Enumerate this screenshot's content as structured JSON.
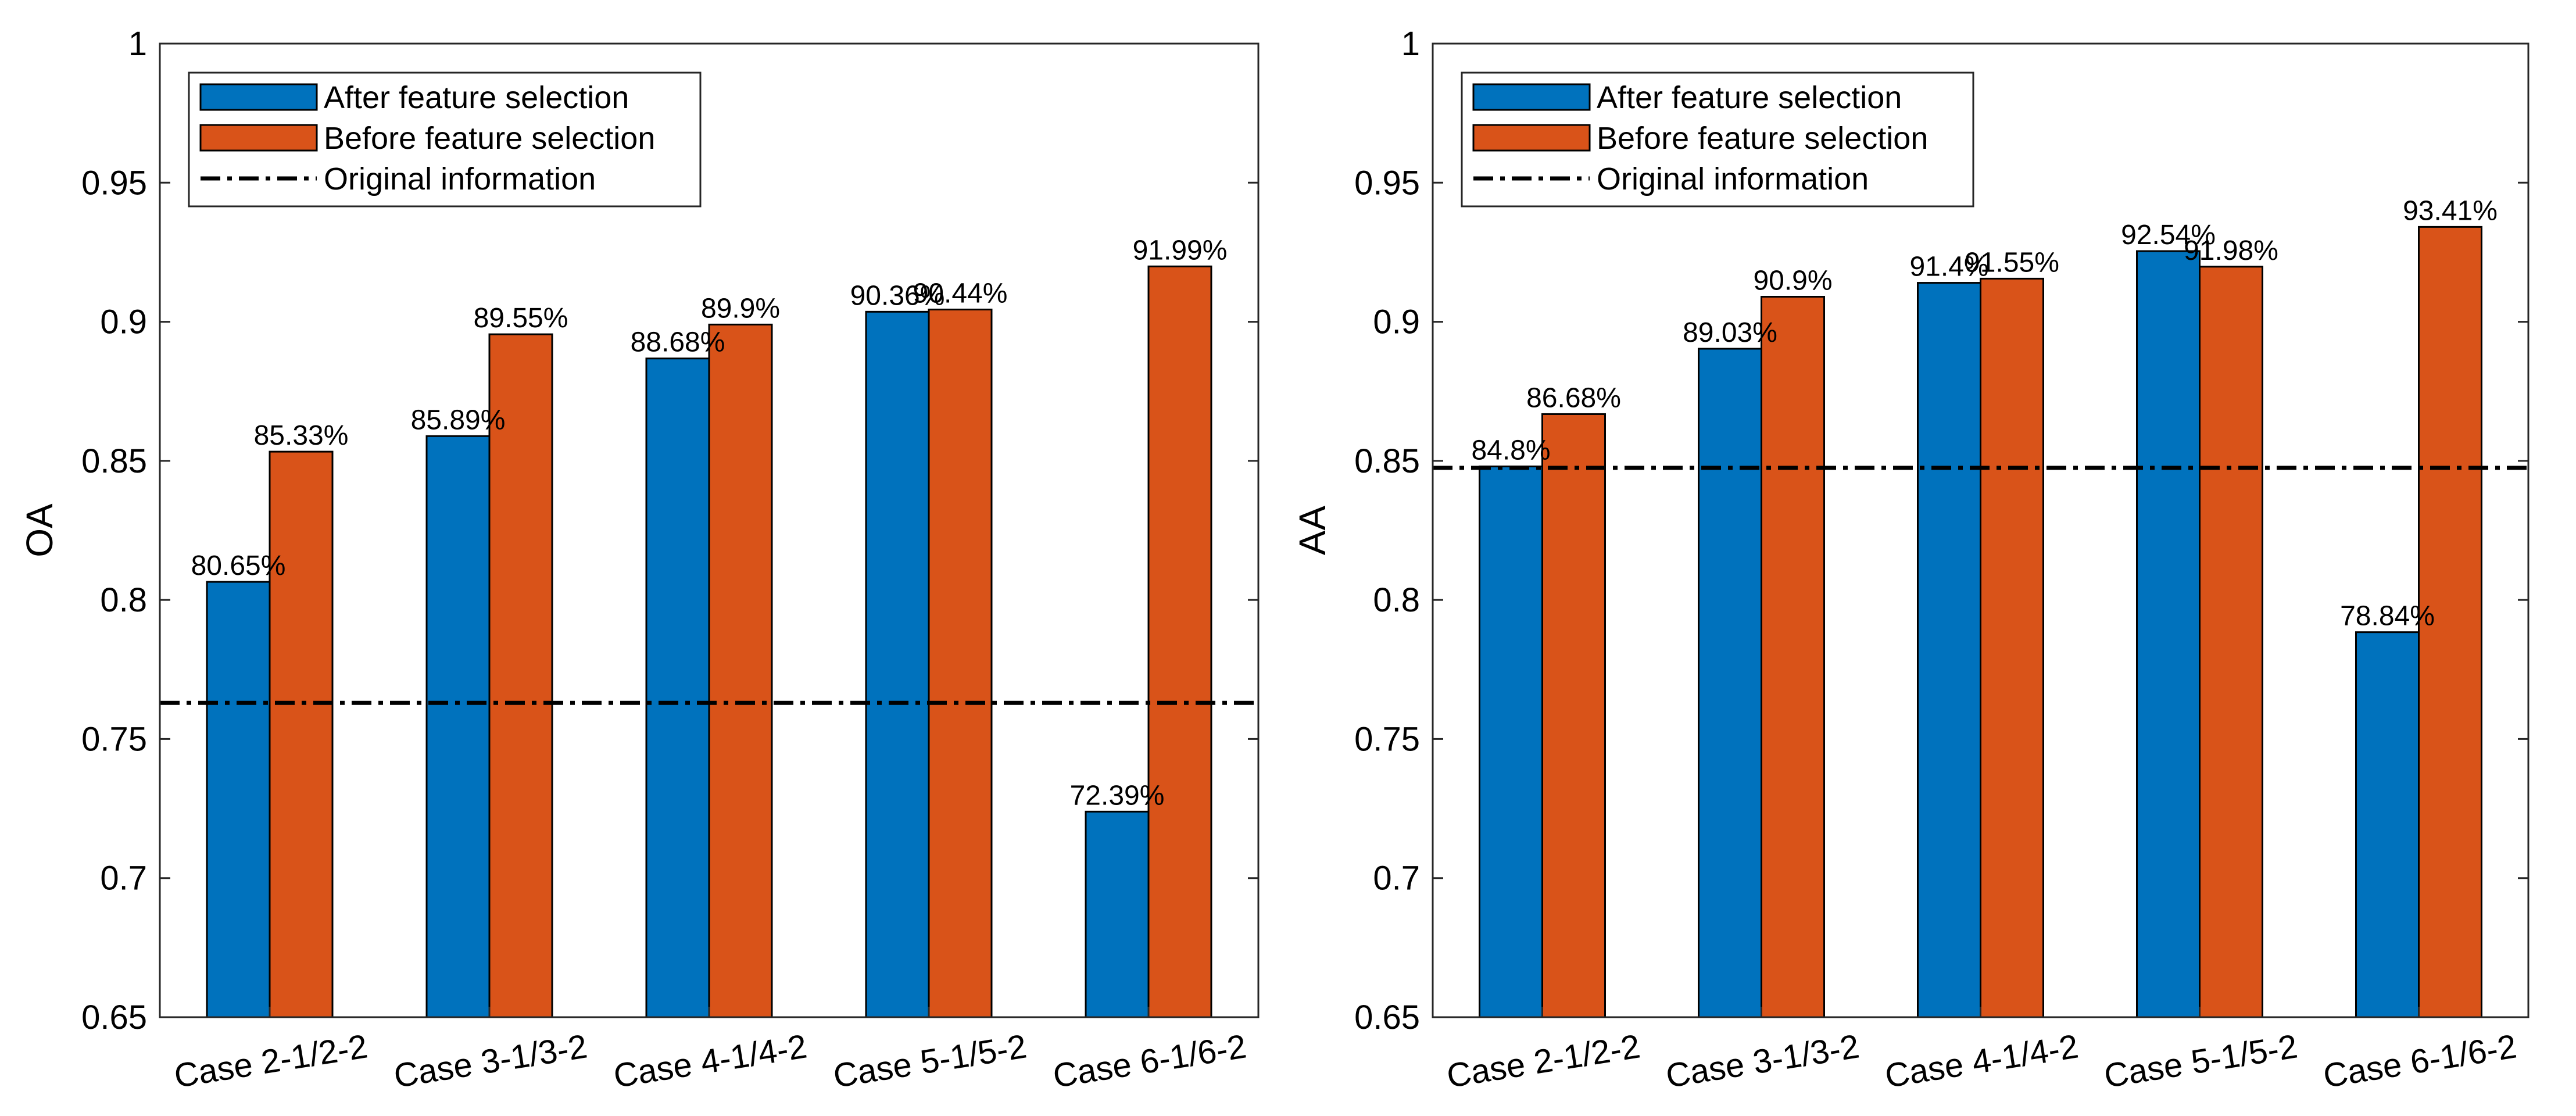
{
  "chart_data": [
    {
      "type": "bar",
      "ylabel": "OA",
      "xlabel": "",
      "ylim": [
        0.65,
        1
      ],
      "yticks": [
        "0.65",
        "0.7",
        "0.75",
        "0.8",
        "0.85",
        "0.9",
        "0.95",
        "1"
      ],
      "categories": [
        "Case 2-1/2-2",
        "Case 3-1/3-2",
        "Case 4-1/4-2",
        "Case 5-1/5-2",
        "Case 6-1/6-2"
      ],
      "series": [
        {
          "name": "After feature selection",
          "color": "#0072BD",
          "values": [
            0.8065,
            0.8589,
            0.8868,
            0.9036,
            0.7239
          ],
          "labels": [
            "80.65%",
            "85.89%",
            "88.68%",
            "90.36%",
            "72.39%"
          ]
        },
        {
          "name": "Before feature selection",
          "color": "#D95319",
          "values": [
            0.8533,
            0.8955,
            0.899,
            0.9044,
            0.9199
          ],
          "labels": [
            "85.33%",
            "89.55%",
            "89.9%",
            "90.44%",
            "91.99%"
          ]
        }
      ],
      "reference_line": {
        "name": "Original information",
        "value": 0.763,
        "style": "dash-dot"
      },
      "legend": "top-left",
      "grid": false
    },
    {
      "type": "bar",
      "ylabel": "AA",
      "xlabel": "",
      "ylim": [
        0.65,
        1
      ],
      "yticks": [
        "0.65",
        "0.7",
        "0.75",
        "0.8",
        "0.85",
        "0.9",
        "0.95",
        "1"
      ],
      "categories": [
        "Case 2-1/2-2",
        "Case 3-1/3-2",
        "Case 4-1/4-2",
        "Case 5-1/5-2",
        "Case 6-1/6-2"
      ],
      "series": [
        {
          "name": "After feature selection",
          "color": "#0072BD",
          "values": [
            0.848,
            0.8903,
            0.914,
            0.9254,
            0.7884
          ],
          "labels": [
            "84.8%",
            "89.03%",
            "91.4%",
            "92.54%",
            "78.84%"
          ]
        },
        {
          "name": "Before feature selection",
          "color": "#D95319",
          "values": [
            0.8668,
            0.909,
            0.9155,
            0.9198,
            0.9341
          ],
          "labels": [
            "86.68%",
            "90.9%",
            "91.55%",
            "91.98%",
            "93.41%"
          ]
        }
      ],
      "reference_line": {
        "name": "Original information",
        "value": 0.8475,
        "style": "dash-dot"
      },
      "legend": "top-left",
      "grid": false
    }
  ]
}
